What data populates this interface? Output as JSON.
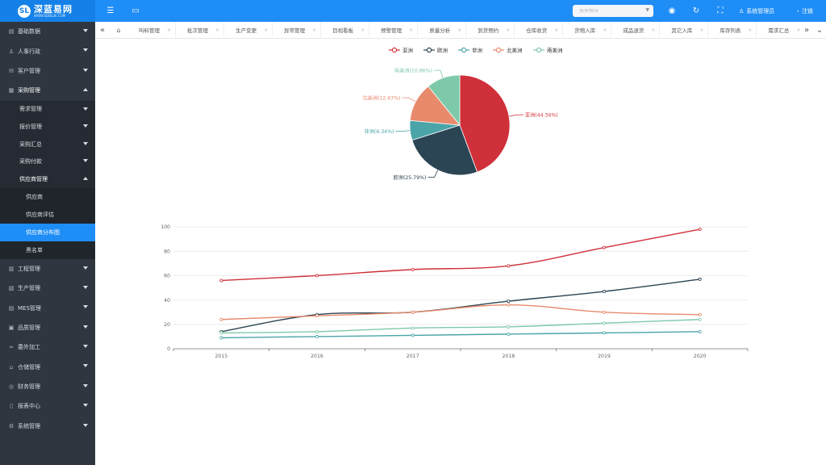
{
  "app": {
    "logo_name": "深蓝易网",
    "logo_sub": "WWW.SDBLUE.COM",
    "logo_mark": "SL"
  },
  "topbar": {
    "menu_icon": "menu-fold-icon",
    "window_icon": "window-icon",
    "search_placeholder": "搜索模块",
    "globe_icon": "globe-icon",
    "refresh_icon": "refresh-icon",
    "fullscreen_icon": "fullscreen-icon",
    "user_label": "系统管理员",
    "logout_label": "注销"
  },
  "sidebar": {
    "items": [
      {
        "label": "基础数据",
        "icon": "folder-icon"
      },
      {
        "label": "人事行政",
        "icon": "person-icon"
      },
      {
        "label": "客户管理",
        "icon": "customer-icon"
      },
      {
        "label": "采购管理",
        "icon": "cart-icon"
      }
    ],
    "purchase_sub": [
      {
        "label": "需求管理"
      },
      {
        "label": "报价管理"
      },
      {
        "label": "采购汇总"
      },
      {
        "label": "采购付款"
      },
      {
        "label": "供应商管理"
      }
    ],
    "supplier_sub": [
      {
        "label": "供应商"
      },
      {
        "label": "供应商评估"
      },
      {
        "label": "供应商分布图"
      },
      {
        "label": "黑名单"
      }
    ],
    "items_after": [
      {
        "label": "工程管理",
        "icon": "engineering-icon"
      },
      {
        "label": "生产管理",
        "icon": "production-icon"
      },
      {
        "label": "MES管理",
        "icon": "mes-icon"
      },
      {
        "label": "品质管理",
        "icon": "quality-icon"
      },
      {
        "label": "委外加工",
        "icon": "link-icon"
      },
      {
        "label": "仓储管理",
        "icon": "warehouse-icon"
      },
      {
        "label": "财务管理",
        "icon": "finance-icon"
      },
      {
        "label": "报表中心",
        "icon": "report-icon"
      },
      {
        "label": "系统管理",
        "icon": "settings-icon"
      }
    ]
  },
  "tabs": [
    {
      "label": "叫料管理"
    },
    {
      "label": "批次管理"
    },
    {
      "label": "生产变更"
    },
    {
      "label": "异常管理"
    },
    {
      "label": "目视看板"
    },
    {
      "label": "预警管理"
    },
    {
      "label": "质量分析"
    },
    {
      "label": "到货预约"
    },
    {
      "label": "仓库收货"
    },
    {
      "label": "货物入库"
    },
    {
      "label": "成品退货"
    },
    {
      "label": "其它入库"
    },
    {
      "label": "库存列表"
    },
    {
      "label": "需求汇总"
    }
  ],
  "chart_data": [
    {
      "type": "pie",
      "legend_position": "top",
      "slices": [
        {
          "name": "亚洲",
          "value": 44.34,
          "label": "亚洲(44.34%)",
          "color": "#d0303a"
        },
        {
          "name": "欧洲",
          "value": 25.79,
          "label": "欧洲(25.79%)",
          "color": "#2b4554"
        },
        {
          "name": "非洲",
          "value": 6.34,
          "label": "非洲(6.34%)",
          "color": "#4aa4a8"
        },
        {
          "name": "北美洲",
          "value": 12.67,
          "label": "北美洲(12.67%)",
          "color": "#e88a6c"
        },
        {
          "name": "南美洲",
          "value": 10.86,
          "label": "南美洲(10.86%)",
          "color": "#7fc9ab"
        }
      ]
    },
    {
      "type": "line",
      "smooth": true,
      "x": [
        "2015",
        "2016",
        "2017",
        "2018",
        "2019",
        "2020"
      ],
      "ylim": [
        0,
        100
      ],
      "yticks": [
        "0",
        "20",
        "40",
        "60",
        "80",
        "100"
      ],
      "grid": true,
      "series": [
        {
          "name": "亚洲",
          "color": "#d0303a",
          "values": [
            56,
            60,
            65,
            68,
            83,
            98
          ]
        },
        {
          "name": "欧洲",
          "color": "#2b4554",
          "values": [
            14,
            28,
            30,
            39,
            47,
            57
          ]
        },
        {
          "name": "北美洲",
          "color": "#e88a6c",
          "values": [
            24,
            27,
            30,
            36,
            30,
            28
          ]
        },
        {
          "name": "南美洲",
          "color": "#7fc9ab",
          "values": [
            13,
            14,
            17,
            18,
            21,
            24
          ]
        },
        {
          "name": "非洲",
          "color": "#4aa4a8",
          "values": [
            9,
            10,
            11,
            12,
            13,
            14
          ]
        }
      ]
    }
  ]
}
